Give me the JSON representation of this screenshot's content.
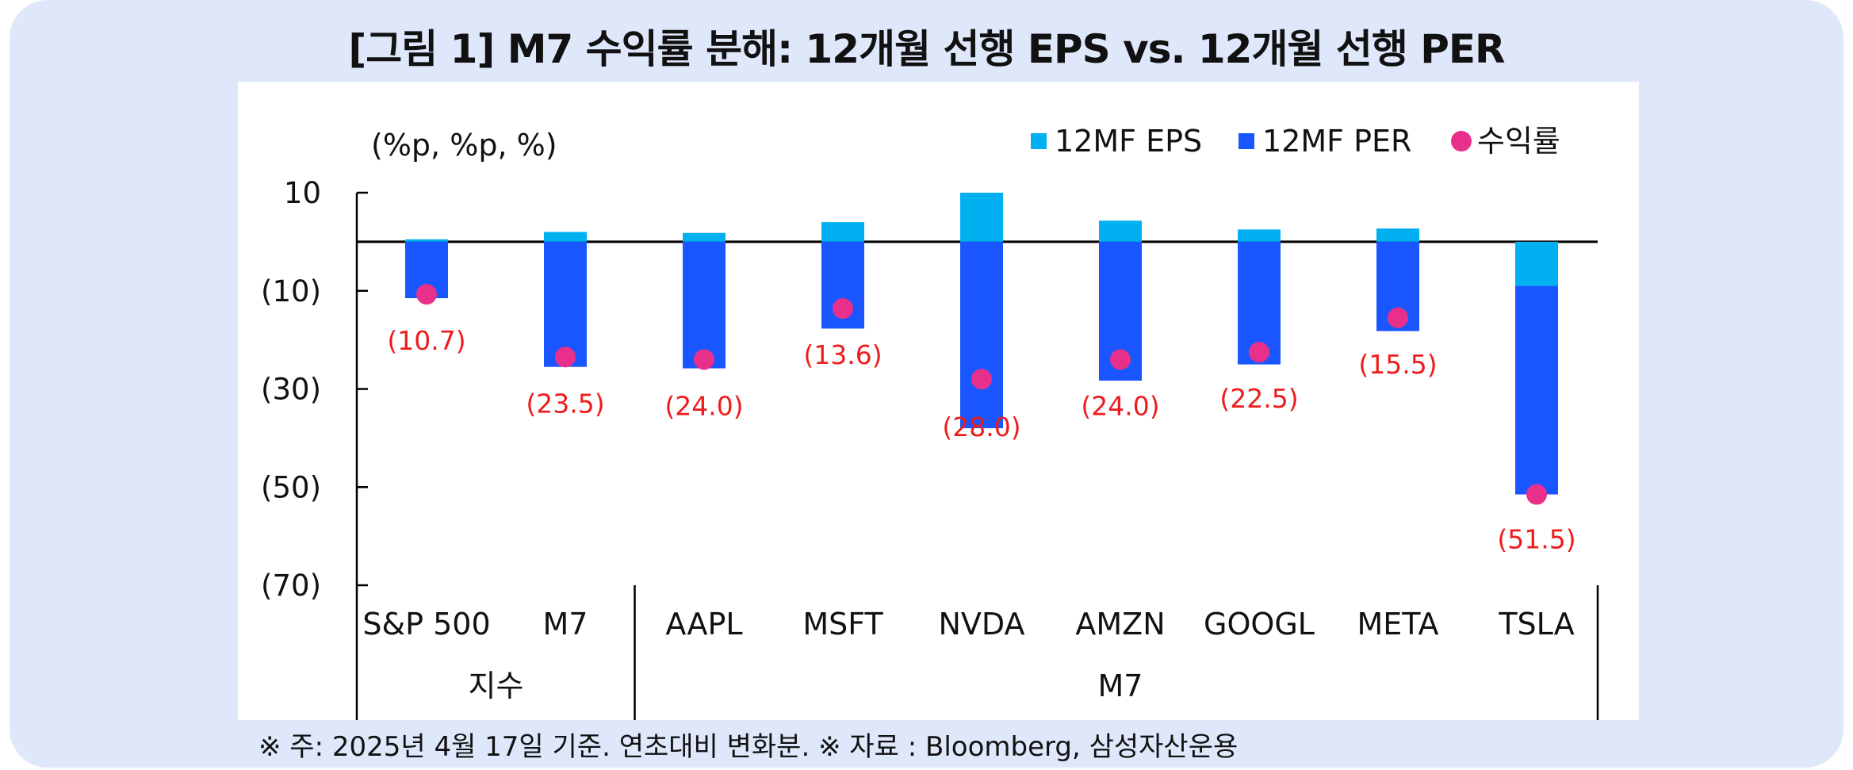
{
  "title": "[그림 1] M7 수익률 분해: 12개월 선행 EPS vs. 12개월 선행 PER",
  "footnote": "※ 주: 2025년 4월 17일 기준. 연초대비 변화분. ※ 자료 : Bloomberg, 삼성자산운용",
  "colors": {
    "eps": "#00b0f0",
    "per": "#1a56ff",
    "return_dot": "#e8308a",
    "data_label": "#ee1c1c",
    "axis": "#000000"
  },
  "chart_data": {
    "type": "bar",
    "stacked": true,
    "title": "[그림 1] M7 수익률 분해: 12개월 선행 EPS vs. 12개월 선행 PER",
    "unit_label": "(%p, %p, %)",
    "categories": [
      "S&P 500",
      "M7",
      "AAPL",
      "MSFT",
      "NVDA",
      "AMZN",
      "GOOGL",
      "META",
      "TSLA"
    ],
    "groups": [
      {
        "label": "지수",
        "categories": [
          "S&P 500",
          "M7"
        ]
      },
      {
        "label": "M7",
        "categories": [
          "AAPL",
          "MSFT",
          "NVDA",
          "AMZN",
          "GOOGL",
          "META",
          "TSLA"
        ]
      }
    ],
    "series": [
      {
        "name": "12MF EPS",
        "kind": "bar",
        "values": [
          0.5,
          2.0,
          1.8,
          4.0,
          10.0,
          4.3,
          2.5,
          2.7,
          -9.0
        ]
      },
      {
        "name": "12MF PER",
        "kind": "bar",
        "values": [
          -11.5,
          -25.5,
          -25.8,
          -17.7,
          -38.0,
          -28.3,
          -25.0,
          -18.2,
          -42.5
        ]
      },
      {
        "name": "수익률",
        "kind": "dot",
        "values": [
          -10.7,
          -23.5,
          -24.0,
          -13.6,
          -28.0,
          -24.0,
          -22.5,
          -15.5,
          -51.5
        ]
      }
    ],
    "data_labels": [
      "(10.7)",
      "(23.5)",
      "(24.0)",
      "(13.6)",
      "(28.0)",
      "(24.0)",
      "(22.5)",
      "(15.5)",
      "(51.5)"
    ],
    "y_ticks": [
      10,
      -10,
      -30,
      -50,
      -70
    ],
    "y_tick_labels": [
      "10",
      "(10)",
      "(30)",
      "(50)",
      "(70)"
    ],
    "ylim": [
      -70,
      10
    ],
    "legend": [
      "12MF EPS",
      "12MF PER",
      "수익률"
    ],
    "legend_position": "top-right"
  }
}
